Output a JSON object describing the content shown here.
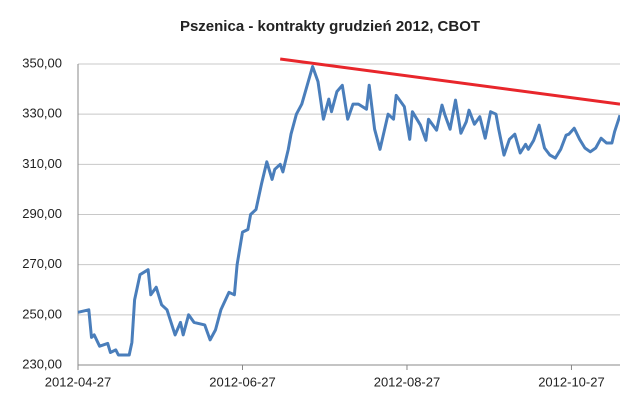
{
  "chart_data": {
    "type": "line",
    "title": "Pszenica - kontrakty grudzień 2012, CBOT",
    "x": [
      "2012-04-27",
      "2012-05-01",
      "2012-05-02",
      "2012-05-03",
      "2012-05-05",
      "2012-05-08",
      "2012-05-09",
      "2012-05-11",
      "2012-05-12",
      "2012-05-16",
      "2012-05-17",
      "2012-05-18",
      "2012-05-20",
      "2012-05-23",
      "2012-05-24",
      "2012-05-26",
      "2012-05-28",
      "2012-05-30",
      "2012-06-02",
      "2012-06-04",
      "2012-06-05",
      "2012-06-07",
      "2012-06-09",
      "2012-06-13",
      "2012-06-15",
      "2012-06-17",
      "2012-06-19",
      "2012-06-22",
      "2012-06-24",
      "2012-06-25",
      "2012-06-27",
      "2012-06-29",
      "2012-06-30",
      "2012-07-02",
      "2012-07-04",
      "2012-07-06",
      "2012-07-08",
      "2012-07-09",
      "2012-07-11",
      "2012-07-12",
      "2012-07-14",
      "2012-07-15",
      "2012-07-17",
      "2012-07-19",
      "2012-07-21",
      "2012-07-23",
      "2012-07-25",
      "2012-07-27",
      "2012-07-29",
      "2012-07-30",
      "2012-08-01",
      "2012-08-03",
      "2012-08-05",
      "2012-08-07",
      "2012-08-09",
      "2012-08-12",
      "2012-08-13",
      "2012-08-15",
      "2012-08-17",
      "2012-08-20",
      "2012-08-22",
      "2012-08-23",
      "2012-08-26",
      "2012-08-28",
      "2012-08-29",
      "2012-09-01",
      "2012-09-03",
      "2012-09-04",
      "2012-09-07",
      "2012-09-09",
      "2012-09-10",
      "2012-09-12",
      "2012-09-14",
      "2012-09-16",
      "2012-09-18",
      "2012-09-19",
      "2012-09-21",
      "2012-09-23",
      "2012-09-25",
      "2012-09-27",
      "2012-09-29",
      "2012-09-30",
      "2012-10-02",
      "2012-10-04",
      "2012-10-06",
      "2012-10-08",
      "2012-10-10",
      "2012-10-11",
      "2012-10-13",
      "2012-10-15",
      "2012-10-17",
      "2012-10-19",
      "2012-10-21",
      "2012-10-23",
      "2012-10-25",
      "2012-10-26",
      "2012-10-28",
      "2012-10-30",
      "2012-11-01",
      "2012-11-03",
      "2012-11-05",
      "2012-11-07",
      "2012-11-09",
      "2012-11-11",
      "2012-11-12",
      "2012-11-14"
    ],
    "series": [
      {
        "color": "#4a7ebb",
        "values": [
          251,
          252,
          241,
          242,
          237.5,
          238.6,
          235,
          236,
          234,
          234,
          239,
          256,
          266,
          268,
          258,
          261,
          254,
          252,
          242,
          247,
          242,
          250,
          247,
          246,
          240,
          244,
          252,
          259,
          258,
          270,
          283,
          284,
          290,
          292,
          302,
          311,
          304,
          308,
          310,
          307,
          316,
          322,
          330,
          334,
          341.5,
          349,
          343,
          328,
          336,
          331,
          339,
          341.5,
          328,
          334,
          334,
          332,
          341.5,
          324,
          316,
          330,
          328,
          337.5,
          333,
          320,
          331,
          325.6,
          319.6,
          328,
          323.6,
          333.6,
          330,
          324,
          335.6,
          322.4,
          327,
          331.6,
          326,
          329,
          320.4,
          331,
          330,
          324,
          313.7,
          320,
          322,
          314.5,
          318,
          316,
          319.6,
          325.6,
          316.5,
          313.7,
          312.5,
          316,
          321.6,
          322,
          324.4,
          320,
          316.5,
          315,
          316.5,
          320.4,
          318.5,
          318.5,
          323,
          329.6
        ]
      }
    ],
    "trendline": {
      "x": [
        "2012-07-11",
        "2012-11-14"
      ],
      "values": [
        352,
        334
      ],
      "color": "#e8262b"
    },
    "xlim": [
      "2012-04-27",
      "2012-11-14"
    ],
    "xticks": [
      "2012-04-27",
      "2012-06-27",
      "2012-08-27",
      "2012-10-27"
    ],
    "ylim": [
      230,
      350
    ],
    "yticks": [
      {
        "value": 230,
        "label": "230,00"
      },
      {
        "value": 250,
        "label": "250,00"
      },
      {
        "value": 270,
        "label": "270,00"
      },
      {
        "value": 290,
        "label": "290,00"
      },
      {
        "value": 310,
        "label": "310,00"
      },
      {
        "value": 330,
        "label": "330,00"
      },
      {
        "value": 350,
        "label": "350,00"
      }
    ],
    "grid": true
  }
}
